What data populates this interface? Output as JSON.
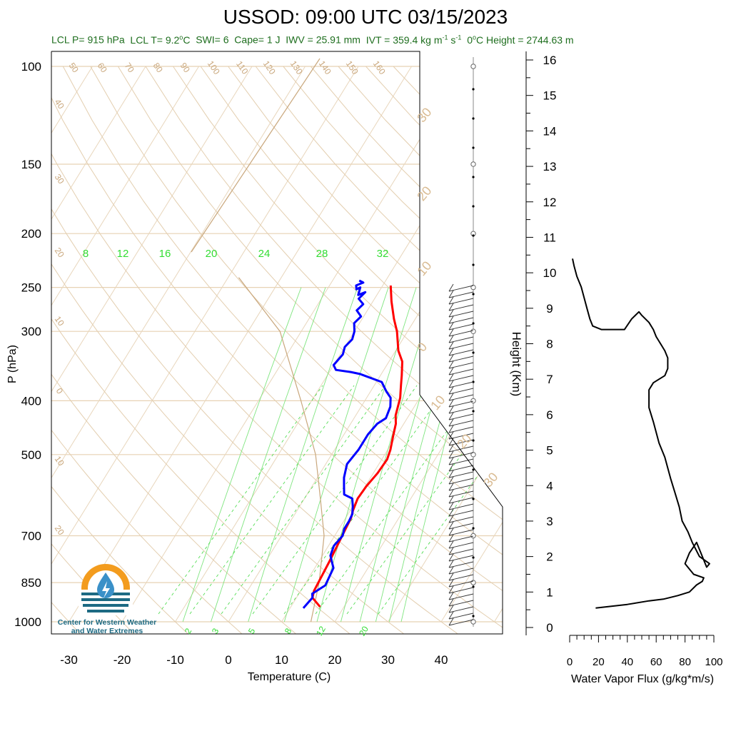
{
  "title": "USSOD: 09:00 UTC 03/15/2023",
  "stats": {
    "lcl_p": "LCL P= 915 hPa",
    "lcl_t_prefix": "LCL T= 9.2",
    "lcl_t_unit": "C",
    "swi": "SWI= 6",
    "cape": "Cape= 1 J",
    "iwv": "IWV = 25.91 mm",
    "ivt_prefix": "IVT = 359.4 kg m",
    "ivt_exp1": "-1",
    "ivt_mid": " s",
    "ivt_exp2": "-1",
    "zero_c_prefix": "0",
    "zero_c_rest": "C Height = 2744.63 m"
  },
  "logo": {
    "line1": "Center for Western Weather",
    "line2": "and Water Extremes"
  },
  "colors": {
    "temperature": "#ff0000",
    "dewpoint": "#0000ff",
    "mixing_ratio": "#00ee00",
    "adiabat": "#d2b48c",
    "stats_text": "#1e6e1e",
    "logo_orange": "#f39c1e",
    "logo_blue": "#1d6a83"
  },
  "chart_data": [
    {
      "type": "line",
      "subtype": "skew-t log-p",
      "xlabel": "Temperature (C)",
      "ylabel": "P (hPa)",
      "xlim": [
        -35,
        50
      ],
      "ylim": [
        1000,
        100
      ],
      "yscale": "log",
      "x_ticks": [
        "-30",
        "-20",
        "-10",
        "0",
        "10",
        "20",
        "30",
        "40"
      ],
      "y_ticks": [
        "100",
        "150",
        "200",
        "250",
        "300",
        "400",
        "500",
        "700",
        "850",
        "1000"
      ],
      "mixing_ratio_labels": [
        "8",
        "12",
        "16",
        "20",
        "24",
        "28",
        "32"
      ],
      "mixing_ratio_bottom_labels": [
        "2",
        "3",
        "5",
        "8",
        "12",
        "20"
      ],
      "dry_adiabat_labels": [
        "50",
        "60",
        "70",
        "80",
        "90",
        "100",
        "110",
        "120",
        "130",
        "140",
        "150",
        "160"
      ],
      "left_edge_labels": [
        "40",
        "30",
        "20",
        "10",
        "0",
        "10",
        "20"
      ],
      "wind_speed_labels": [
        "30",
        "20",
        "10",
        "0",
        "10",
        "20",
        "30"
      ],
      "series": [
        {
          "name": "Temperature",
          "color": "#ff0000",
          "x": [
            15.5,
            13.0,
            12.5,
            12.0,
            11.0,
            10.5,
            10.0,
            10.2,
            10.8,
            11.0,
            10.5,
            9.5,
            8.5,
            7.5,
            6.3,
            5.0,
            4.0,
            2.5,
            0.5,
            -2.0,
            -4.0,
            -6.5,
            -8.5
          ],
          "y": [
            940,
            905,
            880,
            780,
            650,
            630,
            600,
            570,
            540,
            510,
            490,
            465,
            440,
            425,
            395,
            375,
            360,
            340,
            325,
            300,
            285,
            265,
            248
          ]
        },
        {
          "name": "Dewpoint",
          "color": "#0000ff",
          "x": [
            12.5,
            13.0,
            12.5,
            14.0,
            13.5,
            12.5,
            11.5,
            11.0,
            11.5,
            11.0,
            11.0,
            10.8,
            10.0,
            9.0,
            7.0,
            6.0,
            5.0,
            4.0,
            4.5,
            4.5,
            5.0,
            6.0,
            5.5,
            4.5,
            3.0,
            1.0,
            -4.0,
            -6.0,
            -9.0,
            -10.0,
            -9.5,
            -10.0,
            -9.5,
            -10.0,
            -11.0,
            -10.5,
            -12.0,
            -11.5,
            -13.0,
            -12.5,
            -13.5,
            -14.0,
            -14.5,
            -15.0,
            -14.0,
            -15.0
          ],
          "y": [
            945,
            905,
            890,
            860,
            800,
            780,
            760,
            730,
            700,
            680,
            660,
            640,
            620,
            600,
            590,
            570,
            550,
            520,
            490,
            460,
            440,
            430,
            410,
            395,
            385,
            370,
            358,
            355,
            352,
            345,
            330,
            320,
            310,
            300,
            290,
            282,
            275,
            268,
            262,
            255,
            258,
            250,
            252,
            248,
            245,
            243
          ]
        }
      ]
    },
    {
      "type": "line",
      "xlabel": "Water Vapor Flux (g/kg*m/s)",
      "ylabel": "Height (Km)",
      "xlim": [
        0,
        100
      ],
      "ylim": [
        0,
        16.5
      ],
      "x_ticks": [
        "0",
        "20",
        "40",
        "60",
        "80",
        "100"
      ],
      "y_ticks": [
        "0",
        "1",
        "2",
        "3",
        "4",
        "5",
        "6",
        "7",
        "8",
        "9",
        "10",
        "11",
        "12",
        "13",
        "14",
        "15",
        "16"
      ],
      "series": [
        {
          "name": "Water Vapor Flux",
          "color": "#000000",
          "x": [
            18,
            40,
            55,
            65,
            75,
            83,
            88,
            92,
            93,
            86,
            80,
            83,
            88,
            95,
            97,
            90,
            85,
            82,
            78,
            76,
            73,
            70,
            66,
            62,
            58,
            55,
            55,
            58,
            62,
            66,
            68,
            68,
            66,
            63,
            60,
            58,
            55,
            50,
            48,
            43,
            38,
            30,
            22,
            16,
            14,
            12,
            10,
            8,
            5,
            3,
            2
          ],
          "y": [
            0.55,
            0.65,
            0.75,
            0.8,
            0.9,
            1.0,
            1.2,
            1.3,
            1.4,
            1.5,
            1.8,
            2.1,
            2.4,
            1.7,
            1.8,
            2.0,
            2.4,
            2.7,
            3.0,
            3.4,
            3.8,
            4.2,
            4.8,
            5.2,
            5.8,
            6.2,
            6.7,
            6.9,
            7.0,
            7.1,
            7.3,
            7.6,
            7.8,
            8.0,
            8.2,
            8.4,
            8.6,
            8.8,
            8.9,
            8.7,
            8.4,
            8.4,
            8.4,
            8.5,
            8.7,
            9.0,
            9.3,
            9.6,
            9.9,
            10.2,
            10.4
          ]
        }
      ]
    }
  ]
}
